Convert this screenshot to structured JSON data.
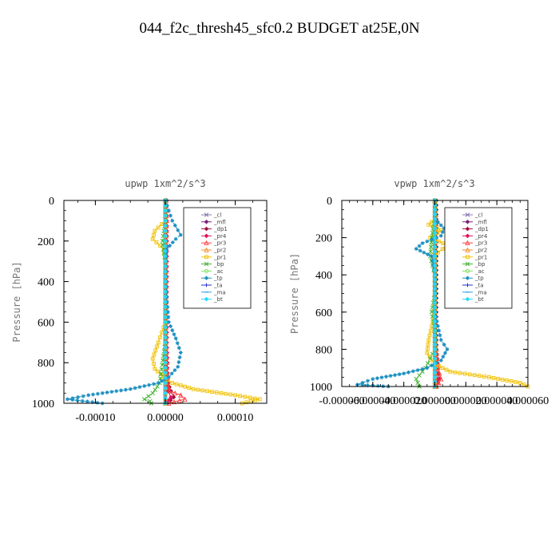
{
  "figure_title": "044_f2c_thresh45_sfc0.2  BUDGET at25E,0N",
  "chart_data": [
    {
      "type": "line",
      "title": "upwp   1xm^2/s^3",
      "ylabel": "Pressure [hPa]",
      "xlim": [
        -0.000145,
        0.000145
      ],
      "ylim": [
        1000,
        0
      ],
      "xticks": [
        -0.0001,
        0.0,
        0.0001
      ],
      "xtick_labels": [
        "-0.00010",
        "0.00000",
        "0.00010"
      ],
      "yticks": [
        0,
        200,
        400,
        600,
        800,
        1000
      ],
      "ytick_labels": [
        "0",
        "200",
        "400",
        "600",
        "800",
        "1000"
      ],
      "grid": false,
      "legend_position": "top-right",
      "series": [
        {
          "name": "_cl",
          "color": "#8a78b0",
          "marker": "cross",
          "x": [
            0,
            0,
            0,
            0,
            0,
            0,
            0,
            0,
            0,
            0,
            0
          ],
          "y": [
            0,
            100,
            200,
            300,
            400,
            500,
            600,
            700,
            800,
            900,
            1000
          ]
        },
        {
          "name": "_mfl",
          "color": "#7a1f7a",
          "marker": "diamond",
          "x": [
            0,
            0,
            0,
            0,
            0,
            0,
            0,
            0,
            0,
            0,
            0
          ],
          "y": [
            0,
            100,
            200,
            300,
            400,
            500,
            600,
            700,
            800,
            900,
            1000
          ]
        },
        {
          "name": "_dp1",
          "color": "#a0103c",
          "marker": "diamond",
          "x": [
            2e-06,
            2e-06,
            2e-06,
            2e-06,
            2e-06,
            2e-06,
            2e-06,
            2e-06,
            2e-06,
            4e-06,
            8e-06,
            1.2e-05,
            3e-06
          ],
          "y": [
            0,
            100,
            200,
            300,
            400,
            500,
            600,
            700,
            800,
            900,
            940,
            970,
            1000
          ]
        },
        {
          "name": "_pr4",
          "color": "#e0105a",
          "marker": "diamond",
          "x": [
            2e-06,
            2e-06,
            2e-06,
            2e-06,
            2e-06,
            2e-06,
            2e-06,
            2e-06,
            3e-06,
            2e-06,
            4e-06,
            8e-06,
            2e-06
          ],
          "y": [
            0,
            100,
            200,
            300,
            400,
            500,
            600,
            700,
            800,
            900,
            940,
            970,
            1000
          ]
        },
        {
          "name": "_pr3",
          "color": "#ff3b3b",
          "marker": "triangle",
          "x": [
            1e-06,
            2e-06,
            1e-06,
            1e-06,
            1e-06,
            1e-06,
            1e-06,
            1e-06,
            2e-06,
            3e-06,
            6e-06,
            2.2e-05,
            2.8e-05,
            5e-06
          ],
          "y": [
            0,
            100,
            200,
            300,
            400,
            500,
            600,
            700,
            800,
            900,
            940,
            960,
            980,
            1000
          ]
        },
        {
          "name": "_pr2",
          "color": "#f08a24",
          "marker": "triangle",
          "x": [
            0,
            0,
            0,
            0,
            0,
            0,
            0,
            0,
            0,
            0,
            0
          ],
          "y": [
            0,
            100,
            200,
            300,
            400,
            500,
            600,
            700,
            800,
            900,
            1000
          ]
        },
        {
          "name": "_pr1",
          "color": "#f0c000",
          "marker": "square",
          "x": [
            0,
            0,
            -1.5e-05,
            -1.8e-05,
            -2e-06,
            0,
            0,
            0,
            0,
            -1e-05,
            -1.8e-05,
            -1.5e-05,
            -2e-06,
            1e-05,
            4e-05,
            0.0001,
            0.000135,
            0.00011
          ],
          "y": [
            0,
            100,
            150,
            190,
            240,
            300,
            400,
            500,
            600,
            700,
            780,
            830,
            870,
            900,
            930,
            960,
            980,
            1000
          ]
        },
        {
          "name": "_bp",
          "color": "#40b030",
          "marker": "cross",
          "x": [
            0,
            0,
            -4e-06,
            -2e-06,
            0,
            0,
            0,
            0,
            0,
            -8e-06,
            -1.8e-05,
            -3e-05,
            -2.2e-05,
            -2e-05
          ],
          "y": [
            0,
            100,
            200,
            260,
            300,
            400,
            500,
            600,
            700,
            900,
            950,
            980,
            990,
            1000
          ]
        },
        {
          "name": "_ac",
          "color": "#80e060",
          "marker": "circle",
          "x": [
            0,
            0,
            0,
            0,
            0,
            0,
            0,
            0,
            0,
            0,
            0
          ],
          "y": [
            0,
            100,
            200,
            300,
            400,
            500,
            600,
            700,
            800,
            900,
            1000
          ]
        },
        {
          "name": "_tp",
          "color": "#1a8fc0",
          "marker": "asterisk",
          "x": [
            0,
            1e-05,
            2.2e-05,
            1.5e-05,
            2e-06,
            0,
            0,
            5e-06,
            1.5e-05,
            2.2e-05,
            1.8e-05,
            5e-06,
            -1e-05,
            -5e-05,
            -0.00011,
            -0.00014,
            -9e-05
          ],
          "y": [
            0,
            100,
            170,
            190,
            240,
            300,
            400,
            600,
            680,
            750,
            820,
            870,
            900,
            930,
            960,
            980,
            1000
          ]
        },
        {
          "name": "_ta",
          "color": "#2030d0",
          "marker": "plus",
          "x": [
            0,
            0,
            0,
            0,
            0,
            0,
            0,
            0,
            0,
            0,
            0
          ],
          "y": [
            0,
            100,
            200,
            300,
            400,
            500,
            600,
            700,
            800,
            900,
            1000
          ]
        },
        {
          "name": "_ma",
          "color": "#30a0e0",
          "marker": "dash",
          "x": [
            0,
            0,
            0,
            0,
            0,
            0,
            0,
            0,
            0,
            0,
            0
          ],
          "y": [
            0,
            100,
            200,
            300,
            400,
            500,
            600,
            700,
            800,
            900,
            1000
          ]
        },
        {
          "name": "_bt",
          "color": "#20d8ff",
          "marker": "diamond",
          "x": [
            0,
            0,
            0,
            0,
            0,
            0,
            0,
            0,
            0,
            0,
            0
          ],
          "y": [
            0,
            100,
            200,
            300,
            400,
            500,
            600,
            700,
            800,
            900,
            1000
          ]
        }
      ]
    },
    {
      "type": "line",
      "title": "vpwp   1xm^2/s^3",
      "ylabel": "Pressure [hPa]",
      "xlim": [
        -6e-05,
        6e-05
      ],
      "ylim": [
        1000,
        0
      ],
      "xticks": [
        -6e-05,
        -4e-05,
        -2e-05,
        0.0,
        2e-05,
        4e-05,
        6e-05
      ],
      "xtick_labels": [
        "-0.000060",
        "-0.000040",
        "-0.000020",
        "0.000000",
        "0.000020",
        "0.000040",
        "0.000060"
      ],
      "yticks": [
        0,
        200,
        400,
        600,
        800,
        1000
      ],
      "ytick_labels": [
        "0",
        "200",
        "400",
        "600",
        "800",
        "1000"
      ],
      "grid": false,
      "legend_position": "top-right",
      "series": [
        {
          "name": "_cl",
          "color": "#8a78b0",
          "marker": "cross",
          "x": [
            0,
            0,
            0,
            0,
            0,
            0,
            0,
            0,
            0,
            0,
            0
          ],
          "y": [
            0,
            100,
            200,
            300,
            400,
            500,
            600,
            700,
            800,
            900,
            1000
          ]
        },
        {
          "name": "_mfl",
          "color": "#7a1f7a",
          "marker": "diamond",
          "x": [
            0,
            0,
            0,
            0,
            0,
            0,
            0,
            0,
            0,
            0,
            0
          ],
          "y": [
            0,
            100,
            200,
            300,
            400,
            500,
            600,
            700,
            800,
            900,
            1000
          ]
        },
        {
          "name": "_dp1",
          "color": "#a0103c",
          "marker": "diamond",
          "x": [
            1e-06,
            1e-06,
            1e-06,
            1e-06,
            1e-06,
            1e-06,
            1e-06,
            1e-06,
            1e-06,
            2e-06,
            3e-06,
            1e-06
          ],
          "y": [
            0,
            100,
            200,
            300,
            400,
            500,
            600,
            700,
            800,
            900,
            960,
            1000
          ]
        },
        {
          "name": "_pr4",
          "color": "#e0105a",
          "marker": "diamond",
          "x": [
            0,
            0,
            0,
            0,
            0,
            0,
            0,
            0,
            0,
            1e-06,
            2e-06,
            1e-06
          ],
          "y": [
            0,
            100,
            200,
            300,
            400,
            500,
            600,
            700,
            800,
            900,
            960,
            1000
          ]
        },
        {
          "name": "_pr3",
          "color": "#ff3b3b",
          "marker": "triangle",
          "x": [
            0,
            1e-06,
            0,
            0,
            0,
            0,
            0,
            0,
            1e-06,
            2e-06,
            4e-06,
            1e-06
          ],
          "y": [
            0,
            100,
            200,
            300,
            400,
            500,
            600,
            700,
            800,
            900,
            960,
            1000
          ]
        },
        {
          "name": "_pr2",
          "color": "#f08a24",
          "marker": "triangle",
          "x": [
            0,
            0,
            0,
            0,
            0,
            0,
            0,
            0,
            0,
            0,
            0
          ],
          "y": [
            0,
            100,
            200,
            300,
            400,
            500,
            600,
            700,
            800,
            900,
            1000
          ]
        },
        {
          "name": "_pr1",
          "color": "#f0c000",
          "marker": "square",
          "x": [
            0,
            0,
            -4e-06,
            4e-06,
            -3e-06,
            8e-06,
            2e-06,
            0,
            0,
            0,
            -4e-06,
            -5e-06,
            0,
            1e-05,
            3.5e-05,
            5.5e-05,
            6e-05
          ],
          "y": [
            0,
            100,
            130,
            160,
            200,
            240,
            280,
            300,
            400,
            600,
            750,
            820,
            880,
            920,
            950,
            980,
            1000
          ]
        },
        {
          "name": "_bp",
          "color": "#40b030",
          "marker": "cross",
          "x": [
            0,
            0,
            -2e-06,
            -3e-06,
            0,
            0,
            -2e-06,
            0,
            0,
            -6e-06,
            -1.2e-05,
            -1e-05
          ],
          "y": [
            0,
            100,
            200,
            300,
            400,
            500,
            600,
            700,
            800,
            900,
            960,
            1000
          ]
        },
        {
          "name": "_ac",
          "color": "#80e060",
          "marker": "circle",
          "x": [
            0,
            0,
            0,
            0,
            0,
            0,
            0,
            0,
            0,
            0,
            0
          ],
          "y": [
            0,
            100,
            200,
            300,
            400,
            500,
            600,
            700,
            800,
            900,
            1000
          ]
        },
        {
          "name": "_tp",
          "color": "#1a8fc0",
          "marker": "asterisk",
          "x": [
            0,
            0,
            6e-06,
            4e-06,
            -8e-06,
            -1.2e-05,
            -2e-06,
            0,
            0,
            4e-06,
            8e-06,
            4e-06,
            -5e-06,
            -2e-05,
            -4e-05,
            -5e-05,
            -3e-05
          ],
          "y": [
            0,
            100,
            150,
            190,
            230,
            260,
            300,
            400,
            600,
            750,
            800,
            860,
            900,
            930,
            960,
            990,
            1000
          ]
        },
        {
          "name": "_ta",
          "color": "#2030d0",
          "marker": "plus",
          "x": [
            0,
            0,
            0,
            0,
            0,
            0,
            0,
            0,
            0,
            0,
            0
          ],
          "y": [
            0,
            100,
            200,
            300,
            400,
            500,
            600,
            700,
            800,
            900,
            1000
          ]
        },
        {
          "name": "_ma",
          "color": "#30a0e0",
          "marker": "dash",
          "x": [
            0,
            0,
            0,
            0,
            0,
            0,
            0,
            0,
            0,
            0,
            0
          ],
          "y": [
            0,
            100,
            200,
            300,
            400,
            500,
            600,
            700,
            800,
            900,
            1000
          ]
        },
        {
          "name": "_bt",
          "color": "#20d8ff",
          "marker": "diamond",
          "x": [
            0,
            0,
            0,
            0,
            0,
            0,
            0,
            0,
            0,
            0,
            0
          ],
          "y": [
            0,
            100,
            200,
            300,
            400,
            500,
            600,
            700,
            800,
            900,
            1000
          ]
        }
      ]
    }
  ]
}
